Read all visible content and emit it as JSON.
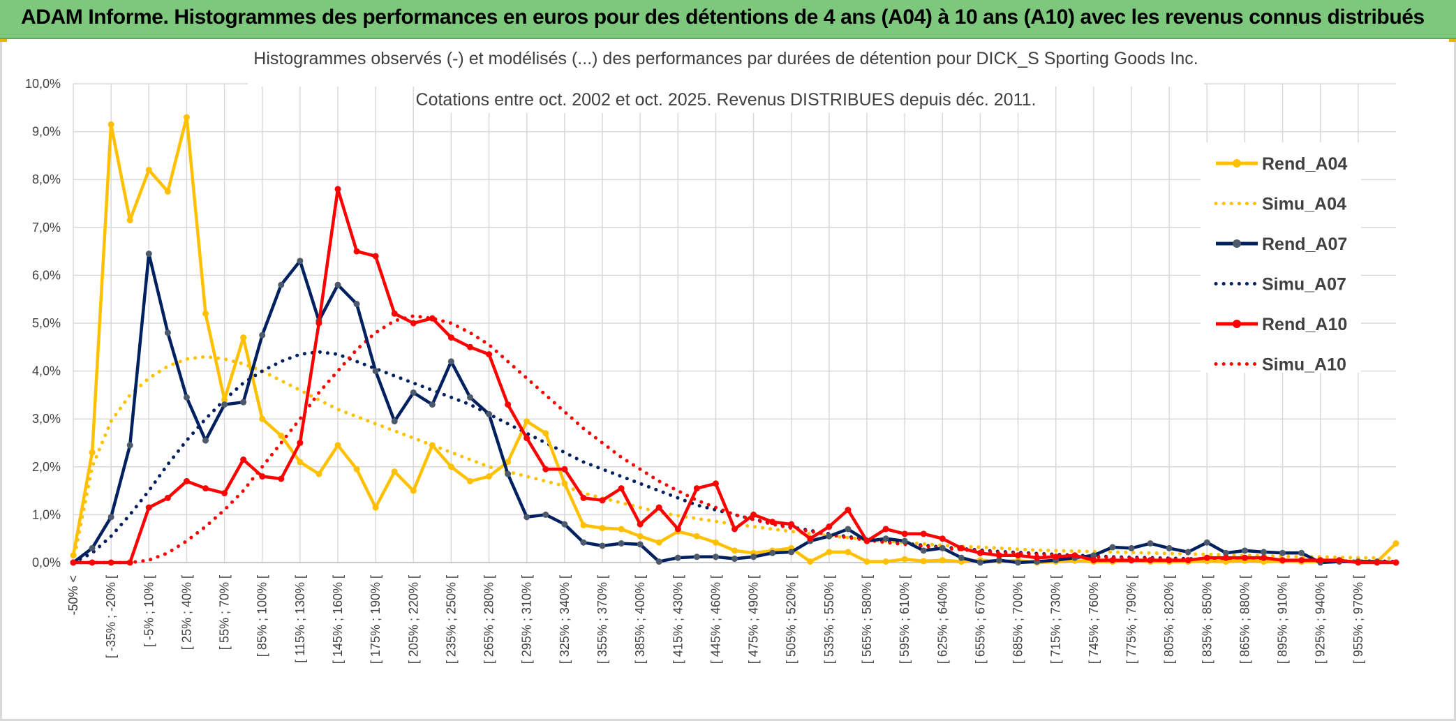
{
  "header": {
    "title": "ADAM Informe. Histogrammes des performances en euros pour des détentions de 4 ans (A04) à 10 ans (A10) avec les revenus connus distribués"
  },
  "colors": {
    "header_bg": "#7ec87e",
    "a04": "#ffc000",
    "a07": "#002060",
    "a10": "#ff0000",
    "marker_a07": "#4d5a6b"
  },
  "chart_data": {
    "type": "line",
    "title_lines": [
      "Histogrammes observés (-) et modélisés (...) des performances par durées de détention pour DICK_S Sporting Goods Inc.",
      "Cotations entre oct. 2002 et oct. 2025. Revenus DISTRIBUES depuis déc. 2011."
    ],
    "ylim": [
      0,
      10
    ],
    "yticks": [
      "0,0%",
      "1,0%",
      "2,0%",
      "3,0%",
      "4,0%",
      "5,0%",
      "6,0%",
      "7,0%",
      "8,0%",
      "9,0%",
      "10,0%"
    ],
    "grid": true,
    "legend_position": "right",
    "x_count": 71,
    "x_tick_labels": [
      "-50% <",
      "[ -35% ; -20% [",
      "[ -5% ; 10% [",
      "[ 25% ; 40% [",
      "[ 55% ; 70% [",
      "[ 85% ; 100% [",
      "[ 115% ; 130% [",
      "[ 145% ; 160% [",
      "[ 175% ; 190% [",
      "[ 205% ; 220% [",
      "[ 235% ; 250% [",
      "[ 265% ; 280% [",
      "[ 295% ; 310% [",
      "[ 325% ; 340% [",
      "[ 355% ; 370% [",
      "[ 385% ; 400% [",
      "[ 415% ; 430% [",
      "[ 445% ; 460% [",
      "[ 475% ; 490% [",
      "[ 505% ; 520% [",
      "[ 535% ; 550% [",
      "[ 565% ; 580% [",
      "[ 595% ; 610% [",
      "[ 625% ; 640% [",
      "[ 655% ; 670% [",
      "[ 685% ; 700% [",
      "[ 715% ; 730% [",
      "[ 745% ; 760% [",
      "[ 775% ; 790% [",
      "[ 805% ; 820% [",
      "[ 835% ; 850% [",
      "[ 865% ; 880% [",
      "[ 895% ; 910% [",
      "[ 925% ; 940% [",
      "[ 955% ; 970% ["
    ],
    "series": [
      {
        "name": "Rend_A04",
        "style": "solid",
        "color": "#ffc000",
        "values": [
          0.15,
          2.3,
          9.15,
          7.15,
          8.2,
          7.75,
          9.3,
          5.2,
          3.4,
          4.7,
          3.0,
          2.65,
          2.1,
          1.85,
          2.45,
          1.95,
          1.15,
          1.9,
          1.5,
          2.45,
          2.0,
          1.7,
          1.8,
          2.1,
          2.95,
          2.7,
          1.65,
          0.78,
          0.72,
          0.7,
          0.55,
          0.42,
          0.65,
          0.55,
          0.42,
          0.25,
          0.2,
          0.25,
          0.3,
          0.02,
          0.22,
          0.22,
          0.02,
          0.02,
          0.07,
          0.03,
          0.05,
          0.02,
          0.05,
          0.03,
          0.04,
          0.0,
          0.02,
          0.04,
          0.02,
          0.02,
          0.04,
          0.02,
          0.02,
          0.02,
          0.03,
          0.02,
          0.04,
          0.02,
          0.03,
          0.02,
          0.02,
          0.02,
          0.03,
          0.02,
          0.4
        ]
      },
      {
        "name": "Simu_A04",
        "style": "dotted",
        "color": "#ffc000",
        "values": [
          0.0,
          2.0,
          2.95,
          3.5,
          3.85,
          4.1,
          4.25,
          4.3,
          4.25,
          4.15,
          4.0,
          3.8,
          3.6,
          3.4,
          3.2,
          3.05,
          2.9,
          2.75,
          2.6,
          2.45,
          2.3,
          2.15,
          2.0,
          1.9,
          1.8,
          1.7,
          1.6,
          1.45,
          1.35,
          1.25,
          1.15,
          1.05,
          0.98,
          0.92,
          0.86,
          0.8,
          0.75,
          0.7,
          0.65,
          0.6,
          0.56,
          0.52,
          0.48,
          0.45,
          0.42,
          0.39,
          0.36,
          0.34,
          0.32,
          0.3,
          0.28,
          0.26,
          0.25,
          0.24,
          0.23,
          0.22,
          0.21,
          0.2,
          0.19,
          0.18,
          0.17,
          0.16,
          0.15,
          0.14,
          0.13,
          0.12,
          0.12,
          0.11,
          0.1,
          0.1,
          0.09
        ]
      },
      {
        "name": "Rend_A07",
        "style": "solid",
        "color": "#002060",
        "values": [
          0.0,
          0.3,
          0.95,
          2.45,
          6.45,
          4.8,
          3.45,
          2.55,
          3.3,
          3.35,
          4.75,
          5.8,
          6.3,
          5.05,
          5.8,
          5.4,
          4.0,
          2.95,
          3.55,
          3.3,
          4.2,
          3.45,
          3.1,
          1.85,
          0.95,
          1.0,
          0.8,
          0.42,
          0.35,
          0.4,
          0.38,
          0.02,
          0.1,
          0.12,
          0.12,
          0.08,
          0.12,
          0.2,
          0.22,
          0.45,
          0.55,
          0.7,
          0.45,
          0.5,
          0.45,
          0.25,
          0.3,
          0.1,
          0.0,
          0.05,
          0.0,
          0.02,
          0.05,
          0.1,
          0.15,
          0.32,
          0.3,
          0.4,
          0.3,
          0.22,
          0.42,
          0.2,
          0.25,
          0.22,
          0.2,
          0.2,
          0.0,
          0.02,
          0.02,
          0.02,
          0.0
        ]
      },
      {
        "name": "Simu_A07",
        "style": "dotted",
        "color": "#002060",
        "values": [
          0.0,
          0.2,
          0.55,
          1.0,
          1.5,
          2.05,
          2.55,
          3.0,
          3.4,
          3.75,
          4.0,
          4.2,
          4.35,
          4.4,
          4.35,
          4.2,
          4.05,
          3.9,
          3.75,
          3.6,
          3.45,
          3.3,
          3.1,
          2.9,
          2.7,
          2.5,
          2.3,
          2.1,
          1.95,
          1.8,
          1.65,
          1.5,
          1.35,
          1.2,
          1.1,
          1.0,
          0.9,
          0.82,
          0.74,
          0.67,
          0.6,
          0.54,
          0.49,
          0.44,
          0.4,
          0.36,
          0.32,
          0.29,
          0.26,
          0.23,
          0.21,
          0.19,
          0.17,
          0.15,
          0.14,
          0.12,
          0.11,
          0.1,
          0.09,
          0.08,
          0.07,
          0.06,
          0.06,
          0.05,
          0.05,
          0.04,
          0.04,
          0.03,
          0.03,
          0.03,
          0.02
        ]
      },
      {
        "name": "Rend_A10",
        "style": "solid",
        "color": "#ff0000",
        "values": [
          0.0,
          0.0,
          0.0,
          0.0,
          1.15,
          1.35,
          1.7,
          1.55,
          1.45,
          2.15,
          1.8,
          1.75,
          2.5,
          5.0,
          7.8,
          6.5,
          6.4,
          5.2,
          5.0,
          5.1,
          4.7,
          4.5,
          4.35,
          3.3,
          2.6,
          1.95,
          1.95,
          1.35,
          1.3,
          1.55,
          0.8,
          1.15,
          0.7,
          1.55,
          1.65,
          0.7,
          1.0,
          0.85,
          0.8,
          0.5,
          0.75,
          1.1,
          0.45,
          0.7,
          0.6,
          0.6,
          0.5,
          0.3,
          0.2,
          0.15,
          0.15,
          0.1,
          0.12,
          0.15,
          0.05,
          0.05,
          0.05,
          0.05,
          0.05,
          0.05,
          0.1,
          0.1,
          0.1,
          0.1,
          0.05,
          0.05,
          0.05,
          0.05,
          0.0,
          0.0,
          0.0
        ]
      },
      {
        "name": "Simu_A10",
        "style": "dotted",
        "color": "#ff0000",
        "values": [
          0.0,
          0.0,
          0.0,
          0.0,
          0.05,
          0.2,
          0.45,
          0.75,
          1.1,
          1.5,
          2.0,
          2.5,
          3.0,
          3.55,
          4.0,
          4.45,
          4.8,
          5.05,
          5.15,
          5.1,
          5.0,
          4.8,
          4.55,
          4.2,
          3.85,
          3.5,
          3.15,
          2.8,
          2.5,
          2.2,
          1.95,
          1.7,
          1.5,
          1.3,
          1.15,
          1.0,
          0.9,
          0.8,
          0.72,
          0.65,
          0.58,
          0.52,
          0.47,
          0.42,
          0.38,
          0.34,
          0.3,
          0.27,
          0.24,
          0.21,
          0.19,
          0.17,
          0.15,
          0.13,
          0.12,
          0.1,
          0.09,
          0.08,
          0.07,
          0.06,
          0.06,
          0.05,
          0.05,
          0.04,
          0.04,
          0.03,
          0.03,
          0.03,
          0.02,
          0.02,
          0.02
        ]
      }
    ]
  }
}
